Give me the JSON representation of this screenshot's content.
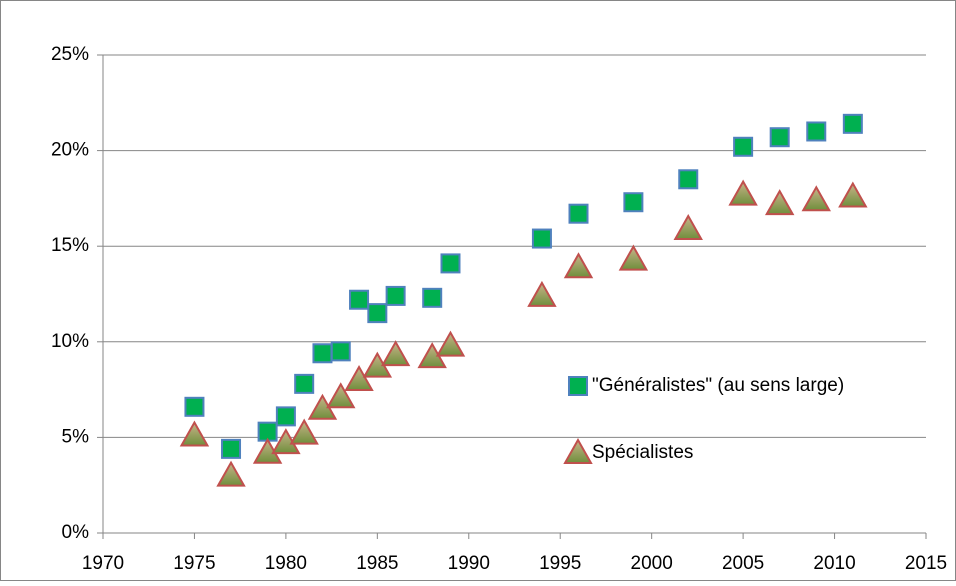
{
  "chart_data": {
    "type": "scatter",
    "xlim": [
      1970,
      2015
    ],
    "xticks": [
      1970,
      1975,
      1980,
      1985,
      1990,
      1995,
      2000,
      2005,
      2010,
      2015
    ],
    "ylim": [
      0,
      25
    ],
    "yticks": [
      {
        "value": 0,
        "label": "0%"
      },
      {
        "value": 5,
        "label": "5%"
      },
      {
        "value": 10,
        "label": "10%"
      },
      {
        "value": 15,
        "label": "15%"
      },
      {
        "value": 20,
        "label": "20%"
      },
      {
        "value": 25,
        "label": "25%"
      }
    ],
    "grid": true,
    "legend": "right",
    "series": [
      {
        "name": "\"Généralistes\" (au sens large)",
        "color": "#00b050",
        "marker": "square",
        "x": [
          1975,
          1977,
          1979,
          1980,
          1981,
          1982,
          1983,
          1984,
          1985,
          1986,
          1988,
          1989,
          1994,
          1996,
          1999,
          2002,
          2005,
          2007,
          2009,
          2011
        ],
        "values": [
          6.6,
          4.4,
          5.3,
          6.1,
          7.8,
          9.4,
          9.5,
          12.2,
          11.5,
          12.4,
          12.3,
          14.1,
          15.4,
          16.7,
          17.3,
          18.5,
          20.2,
          20.7,
          21.0,
          21.4
        ]
      },
      {
        "name": "Spécialistes",
        "color": "#8c9d5a",
        "marker": "triangle",
        "x": [
          1975,
          1977,
          1979,
          1980,
          1981,
          1982,
          1983,
          1984,
          1985,
          1986,
          1988,
          1989,
          1994,
          1996,
          1999,
          2002,
          2005,
          2007,
          2009,
          2011
        ],
        "values": [
          5.1,
          3.0,
          4.2,
          4.7,
          5.2,
          6.5,
          7.1,
          8.0,
          8.7,
          9.3,
          9.2,
          9.8,
          12.4,
          13.9,
          14.3,
          15.9,
          17.7,
          17.2,
          17.4,
          17.6
        ]
      }
    ]
  }
}
